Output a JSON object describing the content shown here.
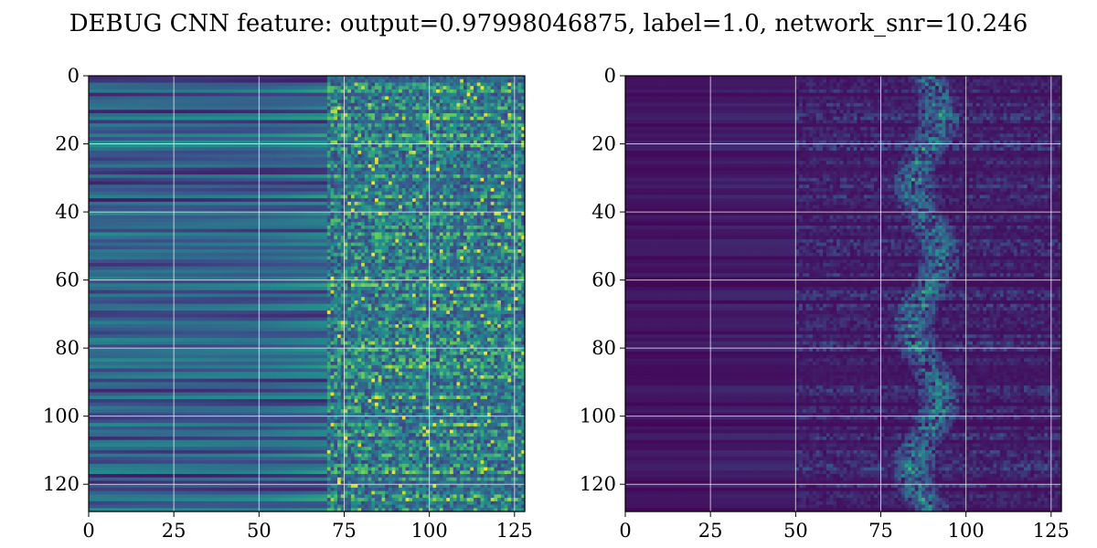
{
  "chart_data": {
    "type": "heatmap",
    "title": "DEBUG CNN feature: output=0.97998046875, label=1.0, network_snr=10.246",
    "colormap": [
      "#440154",
      "#3b528b",
      "#21918c",
      "#5ec962",
      "#fde725"
    ],
    "grid": true,
    "panels": [
      {
        "name": "left",
        "rows": 128,
        "cols": 128,
        "xlim": [
          0,
          128
        ],
        "ylim": [
          128,
          0
        ],
        "xticks": [
          "0",
          "25",
          "50",
          "75",
          "100",
          "125"
        ],
        "yticks": [
          "0",
          "20",
          "40",
          "60",
          "80",
          "100",
          "120"
        ],
        "noise_start_col": 70,
        "approx_mean_low_cols": 0.3,
        "approx_mean_high_cols": 0.45
      },
      {
        "name": "right",
        "rows": 128,
        "cols": 128,
        "xlim": [
          0,
          128
        ],
        "ylim": [
          128,
          0
        ],
        "xticks": [
          "0",
          "25",
          "50",
          "75",
          "100",
          "125"
        ],
        "yticks": [
          "0",
          "20",
          "40",
          "60",
          "80",
          "100",
          "120"
        ],
        "noise_start_col": 50,
        "hot_band_col": 88,
        "approx_mean_low_cols": 0.05,
        "approx_mean_high_cols": 0.2
      }
    ]
  }
}
